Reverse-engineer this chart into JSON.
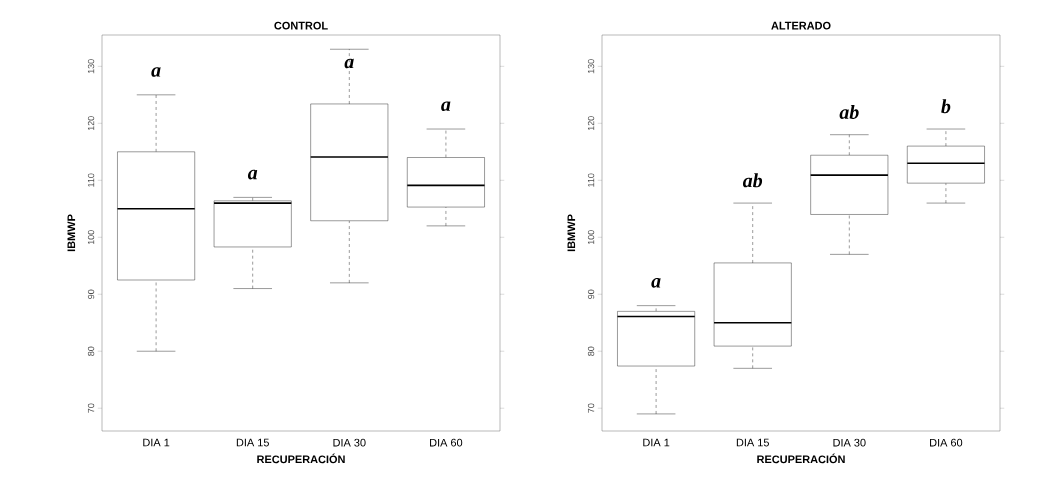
{
  "chart_data": [
    {
      "type": "box",
      "title": "CONTROL",
      "xlabel": "RECUPERACIÓN",
      "ylabel": "IBMWP",
      "categories": [
        "DIA 1",
        "DIA 15",
        "DIA 30",
        "DIA 60"
      ],
      "boxes": [
        {
          "low": 80,
          "q1": 92.5,
          "median": 105,
          "q3": 115,
          "high": 125
        },
        {
          "low": 91,
          "q1": 98.3,
          "median": 106,
          "q3": 106.4,
          "high": 107
        },
        {
          "low": 92,
          "q1": 102.9,
          "median": 114.1,
          "q3": 123.4,
          "high": 133
        },
        {
          "low": 102,
          "q1": 105.3,
          "median": 109.1,
          "q3": 114,
          "high": 119
        }
      ],
      "ylim": [
        66,
        135.5
      ],
      "yticks": [
        70,
        80,
        90,
        100,
        110,
        120,
        130
      ],
      "annotations": [
        "a",
        "a",
        "a",
        "a"
      ]
    },
    {
      "type": "box",
      "title": "ALTERADO",
      "xlabel": "RECUPERACIÓN",
      "ylabel": "IBMWP",
      "categories": [
        "DIA 1",
        "DIA 15",
        "DIA 30",
        "DIA 60"
      ],
      "boxes": [
        {
          "low": 69,
          "q1": 77.4,
          "median": 86.1,
          "q3": 87,
          "high": 88
        },
        {
          "low": 77,
          "q1": 80.9,
          "median": 85,
          "q3": 95.5,
          "high": 106
        },
        {
          "low": 97,
          "q1": 104,
          "median": 110.9,
          "q3": 114.4,
          "high": 118
        },
        {
          "low": 106,
          "q1": 109.5,
          "median": 113,
          "q3": 116,
          "high": 119
        }
      ],
      "ylim": [
        66,
        135.5
      ],
      "yticks": [
        70,
        80,
        90,
        100,
        110,
        120,
        130
      ],
      "annotations": [
        "a",
        "ab",
        "ab",
        "b"
      ]
    }
  ]
}
